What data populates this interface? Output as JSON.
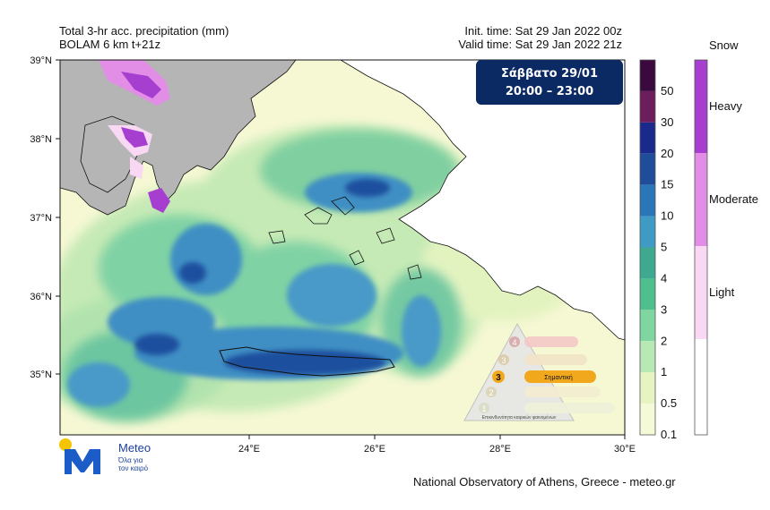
{
  "header": {
    "title_line1": "Total 3-hr acc. precipitation (mm)",
    "title_line2": "BOLAM 6 km t+21z",
    "init_time": "Init. time: Sat 29 Jan 2022 00z",
    "valid_time": "Valid time: Sat 29 Jan 2022 21z"
  },
  "badge": {
    "line1": "Σάββατο 29/01",
    "line2": "20:00 – 23:00"
  },
  "axes": {
    "lat_labels": [
      "39°N",
      "38°N",
      "37°N",
      "36°N",
      "35°N"
    ],
    "lon_labels": [
      "24°E",
      "26°E",
      "28°E",
      "30°E"
    ]
  },
  "precip_colorbar": {
    "labels": [
      "50",
      "30",
      "20",
      "15",
      "10",
      "5",
      "4",
      "3",
      "2",
      "1",
      "0.5",
      "0.1"
    ],
    "colors": [
      "#3a0a3f",
      "#6b1e5b",
      "#1a2a8c",
      "#1f4d9a",
      "#2a76b6",
      "#3f9bc4",
      "#3fa98f",
      "#4fbf8e",
      "#7fd6a0",
      "#b8e8b3",
      "#e6f4c2",
      "#f4fad8"
    ]
  },
  "snow_colorbar": {
    "title": "Snow",
    "labels": [
      "Heavy",
      "Moderate",
      "Light"
    ],
    "colors": [
      "#a63fd0",
      "#e38ee6",
      "#f9d8f3"
    ]
  },
  "legend_scale": {
    "levels": [
      "4",
      "3",
      "2",
      "1"
    ],
    "highlight_level": "3",
    "highlight_label": "Σημαντική",
    "footer": "Επικινδυνότητα καιρικών φαινομένων"
  },
  "logo": {
    "name": "Meteo",
    "slogan_line1": "Όλα για",
    "slogan_line2": "τον καιρό"
  },
  "credit": "National Observatory of Athens, Greece - meteo.gr"
}
